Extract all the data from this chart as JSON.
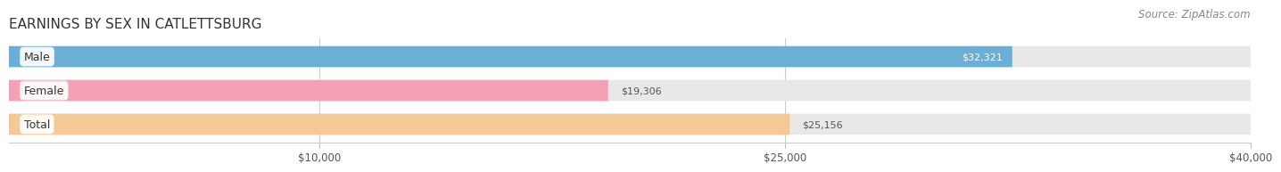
{
  "title": "EARNINGS BY SEX IN CATLETTSBURG",
  "source": "Source: ZipAtlas.com",
  "categories": [
    "Male",
    "Female",
    "Total"
  ],
  "values": [
    32321,
    19306,
    25156
  ],
  "bar_colors": [
    "#6baed6",
    "#f4a0b5",
    "#f5c897"
  ],
  "value_label_colors": [
    "white",
    "#666666",
    "#666666"
  ],
  "value_labels": [
    "$32,321",
    "$19,306",
    "$25,156"
  ],
  "bar_bg_color": "#e8e8e8",
  "xlim": [
    0,
    40000
  ],
  "xticks": [
    10000,
    25000,
    40000
  ],
  "xtick_labels": [
    "$10,000",
    "$25,000",
    "$40,000"
  ],
  "figsize": [
    14.06,
    1.96
  ],
  "dpi": 100,
  "title_fontsize": 11,
  "source_fontsize": 8.5,
  "bar_height": 0.62,
  "value_fontsize": 8,
  "category_fontsize": 9
}
